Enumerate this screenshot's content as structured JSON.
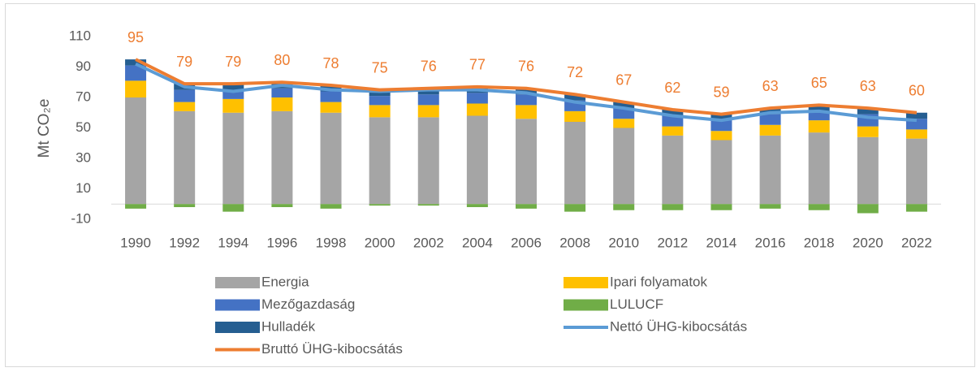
{
  "chart_data": {
    "type": "bar",
    "y_label": "Mt CO₂e",
    "categories": [
      "1990",
      "1992",
      "1994",
      "1996",
      "1998",
      "2000",
      "2002",
      "2004",
      "2006",
      "2008",
      "2010",
      "2012",
      "2014",
      "2016",
      "2018",
      "2020",
      "2022"
    ],
    "stacked": true,
    "grid": false,
    "ylim": [
      -10,
      110
    ],
    "yticks": [
      -10,
      10,
      30,
      50,
      70,
      90,
      110
    ],
    "series": [
      {
        "name": "Energia",
        "type": "bar",
        "color": "#a5a5a5",
        "values": [
          70,
          61,
          60,
          61,
          60,
          57,
          57,
          58,
          56,
          54,
          50,
          45,
          42,
          45,
          47,
          44,
          43
        ]
      },
      {
        "name": "Ipari folyamatok",
        "type": "bar",
        "color": "#ffc000",
        "values": [
          11,
          6,
          9,
          9,
          7,
          8,
          8,
          8,
          9,
          7,
          6,
          6,
          6,
          7,
          8,
          7,
          6
        ]
      },
      {
        "name": "Mezőgazdaság",
        "type": "bar",
        "color": "#4472c4",
        "values": [
          10,
          8,
          6,
          6,
          7,
          6,
          7,
          7,
          7,
          7,
          7,
          7,
          7,
          7,
          6,
          8,
          7
        ]
      },
      {
        "name": "LULUCF",
        "type": "bar",
        "color": "#70ad47",
        "values": [
          -3,
          -2,
          -5,
          -2,
          -3,
          -1,
          -1,
          -2,
          -3,
          -5,
          -4,
          -4,
          -4,
          -3,
          -4,
          -6,
          -5
        ]
      },
      {
        "name": "Hulladék",
        "type": "bar",
        "color": "#255e91",
        "values": [
          4,
          4,
          4,
          4,
          4,
          4,
          4,
          4,
          4,
          4,
          4,
          4,
          4,
          4,
          4,
          4,
          4
        ]
      },
      {
        "name": "Nettó ÜHG-kibocsátás",
        "type": "line",
        "color": "#5b9bd5",
        "values": [
          92,
          77,
          74,
          78,
          75,
          74,
          75,
          75,
          73,
          67,
          63,
          58,
          55,
          60,
          61,
          57,
          55
        ]
      },
      {
        "name": "Bruttó ÜHG-kibocsátás",
        "type": "line",
        "color": "#ed7d31",
        "data_labels": true,
        "values": [
          95,
          79,
          79,
          80,
          78,
          75,
          76,
          77,
          76,
          72,
          67,
          62,
          59,
          63,
          65,
          63,
          60
        ]
      }
    ]
  }
}
